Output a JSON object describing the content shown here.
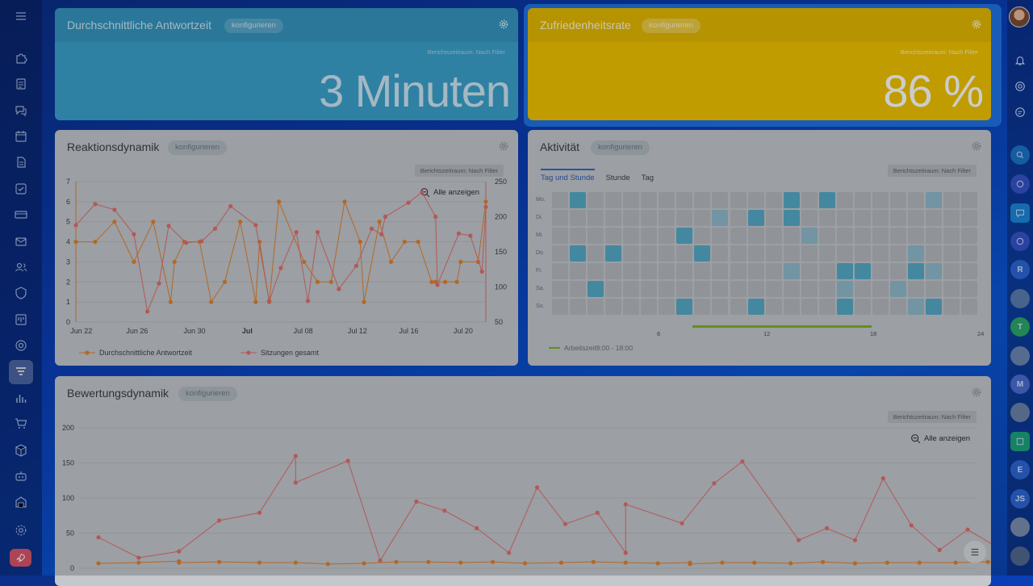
{
  "sidebar": {
    "icons": [
      "menu-icon",
      "puzzle-icon",
      "feed-icon",
      "chat-icon",
      "calendar-icon",
      "document-icon",
      "tasks-icon",
      "card-icon",
      "mail-icon",
      "contacts-icon",
      "shield-icon",
      "kanban-icon",
      "target-icon",
      "funnel-icon",
      "bar-chart-icon",
      "cart-icon",
      "package-icon",
      "robot-icon",
      "warehouse-icon",
      "settings-icon",
      "rocket-icon"
    ]
  },
  "cards": {
    "avg_response": {
      "title": "Durchschnittliche Antwortzeit",
      "config_label": "konfigurieren",
      "period": "Berichtszeitraum: Nach Filter",
      "value": "3 Minuten"
    },
    "satisfaction": {
      "title": "Zufriedenheitsrate",
      "config_label": "konfigurieren",
      "period": "Berichtszeitraum: Nach Filter",
      "value": "86 %"
    },
    "reaction": {
      "title": "Reaktionsdynamik",
      "config_label": "konfigurieren",
      "period": "Berichtszeitraum: Nach Filter",
      "zoom_label": "Alle anzeigen"
    },
    "activity": {
      "title": "Aktivität",
      "config_label": "konfigurieren",
      "period": "Berichtszeitraum: Nach Filter",
      "tabs": [
        "Tag und Stunde",
        "Stunde",
        "Tag"
      ],
      "worktime_label": "Arbeitszeit9:00 - 18:00"
    },
    "rating": {
      "title": "Bewertungsdynamik",
      "config_label": "konfigurieren",
      "period": "Berichtszeitraum: Nach Filter",
      "zoom_label": "Alle anzeigen"
    }
  },
  "chart_data": [
    {
      "type": "line",
      "title": "Reaktionsdynamik",
      "x_tick_labels": [
        "Jun 22",
        "Jun 26",
        "Jun 30",
        "Jul",
        "Jul 08",
        "Jul 12",
        "Jul 16",
        "Jul 20"
      ],
      "bold_tick": "Jul",
      "ylim_left": [
        0,
        7
      ],
      "ylim_right": [
        50,
        250
      ],
      "y_ticks_left": [
        0,
        1,
        2,
        3,
        4,
        5,
        6,
        7
      ],
      "y_ticks_right": [
        50,
        100,
        150,
        200,
        250
      ],
      "legend_placement": "bottom-left",
      "series": [
        {
          "name": "Durchschnittliche Antwortzeit",
          "axis": "left",
          "color": "#e0832f",
          "points": [
            [
              0,
              4
            ],
            [
              1,
              4
            ],
            [
              2,
              5
            ],
            [
              3,
              3
            ],
            [
              4,
              5
            ],
            [
              4.9,
              1
            ],
            [
              5.1,
              3
            ],
            [
              5.6,
              4
            ],
            [
              6.4,
              4
            ],
            [
              7,
              1
            ],
            [
              7.7,
              2
            ],
            [
              8.5,
              5
            ],
            [
              9.3,
              1
            ],
            [
              9.5,
              4
            ],
            [
              10,
              1
            ],
            [
              10.5,
              6
            ],
            [
              11.8,
              3
            ],
            [
              12.5,
              2
            ],
            [
              13.2,
              2
            ],
            [
              13.9,
              6
            ],
            [
              14.7,
              4
            ],
            [
              14.9,
              1
            ],
            [
              15.7,
              5
            ],
            [
              16.3,
              3
            ],
            [
              17,
              4
            ],
            [
              17.7,
              4
            ],
            [
              18.4,
              2
            ],
            [
              18.6,
              2
            ],
            [
              19.1,
              2
            ],
            [
              19.7,
              2
            ],
            [
              19.9,
              3
            ],
            [
              20.8,
              3
            ],
            [
              21.2,
              6
            ]
          ]
        },
        {
          "name": "Sitzungen gesamt",
          "axis": "right",
          "color": "#e06f70",
          "points": [
            [
              0,
              188
            ],
            [
              1,
              218
            ],
            [
              2,
              210
            ],
            [
              3,
              175
            ],
            [
              3.7,
              65
            ],
            [
              4.3,
              105
            ],
            [
              4.8,
              187
            ],
            [
              5.7,
              163
            ],
            [
              6.5,
              165
            ],
            [
              7.2,
              183
            ],
            [
              8,
              215
            ],
            [
              9.3,
              188
            ],
            [
              10,
              80
            ],
            [
              10.6,
              127
            ],
            [
              11.4,
              178
            ],
            [
              12,
              80
            ],
            [
              12.5,
              178
            ],
            [
              13.6,
              97
            ],
            [
              14.5,
              130
            ],
            [
              15.3,
              183
            ],
            [
              15.8,
              175
            ],
            [
              16,
              200
            ],
            [
              17.2,
              220
            ],
            [
              17.9,
              235
            ],
            [
              18.6,
              200
            ],
            [
              18.7,
              103
            ],
            [
              19.8,
              176
            ],
            [
              20.4,
              173
            ],
            [
              21,
              122
            ],
            [
              21.2,
              214
            ]
          ]
        }
      ]
    },
    {
      "type": "heatmap",
      "title": "Aktivität",
      "rows": [
        "Mo.",
        "Di.",
        "Mi.",
        "Do.",
        "Fr.",
        "Sa.",
        "So."
      ],
      "x_tick_labels": [
        "6",
        "12",
        "18",
        "24"
      ],
      "cells_on": [
        [
          0,
          1
        ],
        [
          0,
          13
        ],
        [
          0,
          15
        ],
        [
          0,
          21
        ],
        [
          1,
          9
        ],
        [
          1,
          11
        ],
        [
          1,
          13
        ],
        [
          1,
          24
        ],
        [
          2,
          7
        ],
        [
          2,
          14
        ],
        [
          3,
          1
        ],
        [
          3,
          3
        ],
        [
          3,
          8
        ],
        [
          3,
          20
        ],
        [
          4,
          13
        ],
        [
          4,
          16
        ],
        [
          4,
          17
        ],
        [
          4,
          20
        ],
        [
          4,
          21
        ],
        [
          5,
          2
        ],
        [
          5,
          16
        ],
        [
          5,
          19
        ],
        [
          6,
          7
        ],
        [
          6,
          11
        ],
        [
          6,
          16
        ],
        [
          6,
          20
        ],
        [
          6,
          21
        ],
        [
          6,
          24
        ]
      ],
      "cells_mid": [
        [
          0,
          21
        ],
        [
          1,
          9
        ],
        [
          2,
          14
        ],
        [
          3,
          20
        ],
        [
          4,
          13
        ],
        [
          4,
          21
        ],
        [
          5,
          16
        ],
        [
          5,
          19
        ],
        [
          6,
          20
        ]
      ]
    },
    {
      "type": "line",
      "title": "Bewertungsdynamik",
      "ylim": [
        0,
        200
      ],
      "y_ticks": [
        0,
        50,
        100,
        150,
        200
      ],
      "series": [
        {
          "color": "#e06f70",
          "points": [
            [
              0,
              44
            ],
            [
              1,
              15
            ],
            [
              2,
              24
            ],
            [
              3,
              68
            ],
            [
              4,
              79
            ],
            [
              4.9,
              160
            ],
            [
              4.9,
              122
            ],
            [
              6.2,
              153
            ],
            [
              7,
              11
            ],
            [
              7.9,
              95
            ],
            [
              8.6,
              82
            ],
            [
              9.4,
              57
            ],
            [
              10.2,
              22
            ],
            [
              10.9,
              115
            ],
            [
              11.6,
              63
            ],
            [
              12.4,
              79
            ],
            [
              13.1,
              22
            ],
            [
              13.1,
              91
            ],
            [
              14.5,
              64
            ],
            [
              15.3,
              121
            ],
            [
              16,
              152
            ],
            [
              17.4,
              40
            ],
            [
              18.1,
              57
            ],
            [
              18.8,
              40
            ],
            [
              19.5,
              128
            ],
            [
              20.2,
              61
            ],
            [
              20.9,
              26
            ],
            [
              21.6,
              55
            ],
            [
              22.3,
              31
            ]
          ]
        },
        {
          "color": "#e0832f",
          "points": [
            [
              0,
              7
            ],
            [
              1,
              8
            ],
            [
              2,
              10
            ],
            [
              2,
              8
            ],
            [
              3,
              9
            ],
            [
              4,
              8
            ],
            [
              4.9,
              8
            ],
            [
              5.7,
              6
            ],
            [
              6.6,
              7
            ],
            [
              7.4,
              9
            ],
            [
              8.2,
              9
            ],
            [
              9,
              8
            ],
            [
              9.8,
              9
            ],
            [
              10.6,
              7
            ],
            [
              11.5,
              8
            ],
            [
              12.3,
              9
            ],
            [
              13.1,
              8
            ],
            [
              13.9,
              7
            ],
            [
              14.7,
              8
            ],
            [
              14.7,
              6
            ],
            [
              15.5,
              8
            ],
            [
              16.3,
              8
            ],
            [
              17.2,
              7
            ],
            [
              18,
              9
            ],
            [
              18.8,
              7
            ],
            [
              19.6,
              8
            ],
            [
              20.4,
              8
            ],
            [
              21.3,
              8
            ],
            [
              22.1,
              9
            ],
            [
              22.3,
              9
            ]
          ]
        }
      ]
    }
  ],
  "rightbar": {
    "items": [
      "avatar",
      "bell-icon",
      "target-icon",
      "chat-icon",
      "search-icon",
      "app-icon",
      "message-icon",
      "app-icon",
      "R",
      "avatar",
      "T",
      "avatar",
      "M",
      "avatar",
      "chat-icon",
      "E",
      "JS",
      "avatar",
      "avatar"
    ]
  }
}
